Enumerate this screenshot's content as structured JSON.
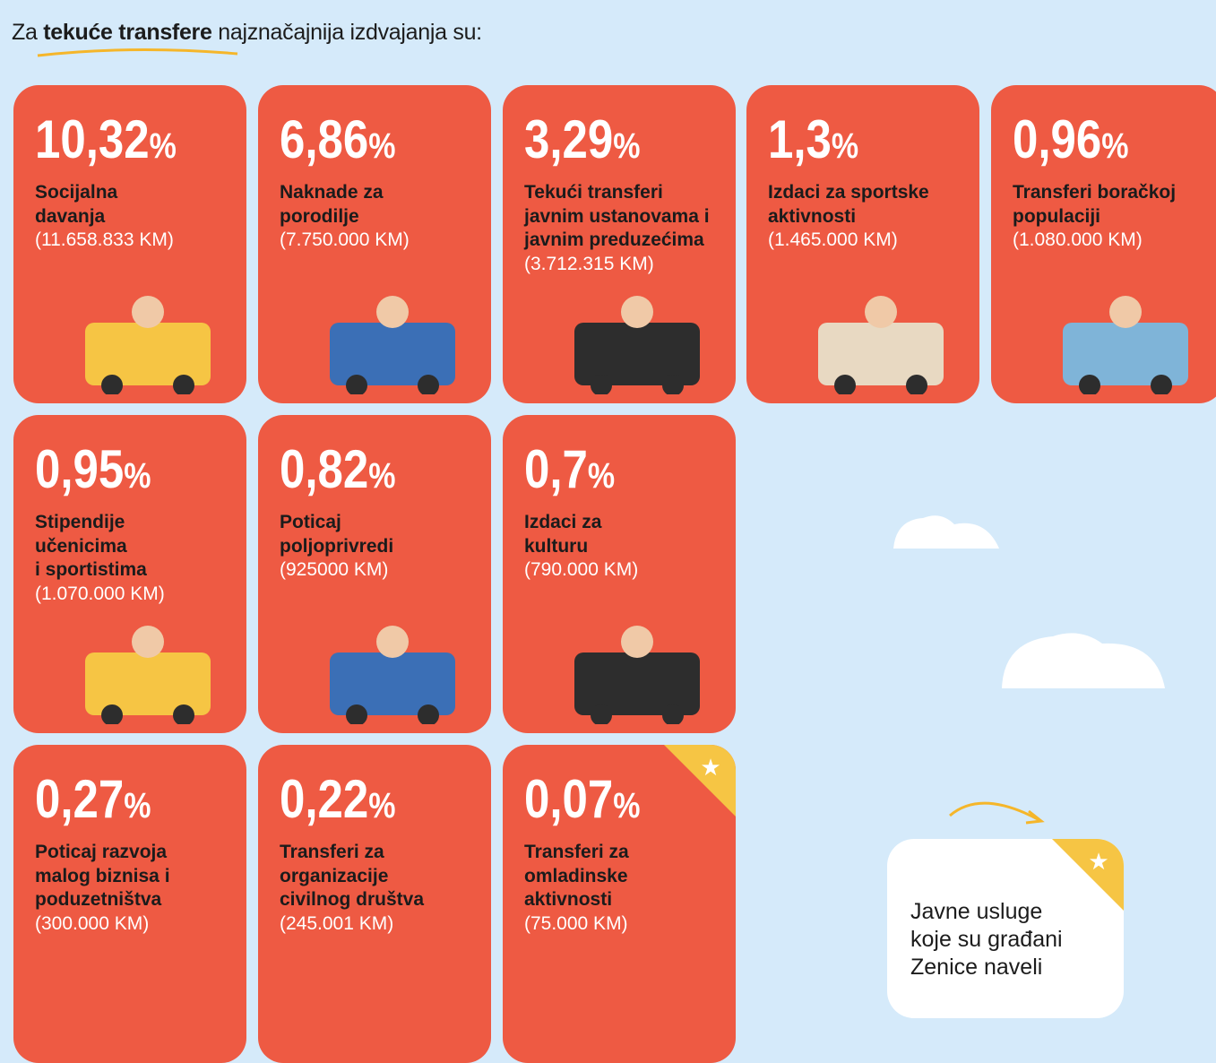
{
  "header": {
    "prefix": "Za",
    "bold": "tekuće transfere",
    "suffix": "najznačajnija izdvajanja su:"
  },
  "cards": [
    {
      "percent": "10,32",
      "unit": "%",
      "label": [
        "Socijalna",
        "davanja"
      ],
      "amount": "(11.658.833 KM)"
    },
    {
      "percent": "6,86",
      "unit": "%",
      "label": [
        "Naknade za",
        "porodilje"
      ],
      "amount": "(7.750.000 KM)"
    },
    {
      "percent": "3,29",
      "unit": "%",
      "label": [
        "Tekući transferi",
        "javnim ustanovama i",
        "javnim preduzećima"
      ],
      "amount": "(3.712.315 KM)"
    },
    {
      "percent": "1,3",
      "unit": "%",
      "label": [
        "Izdaci za sportske",
        "aktivnosti"
      ],
      "amount": "(1.465.000 KM)"
    },
    {
      "percent": "0,96",
      "unit": "%",
      "label": [
        "Transferi boračkoj",
        "populaciji"
      ],
      "amount": "(1.080.000 KM)"
    },
    {
      "percent": "0,95",
      "unit": "%",
      "label": [
        "Stipendije",
        "učenicima",
        "i sportistima"
      ],
      "amount": "(1.070.000 KM)"
    },
    {
      "percent": "0,82",
      "unit": "%",
      "label": [
        "Poticaj",
        "poljoprivredi"
      ],
      "amount": "(925000 KM)"
    },
    {
      "percent": "0,7",
      "unit": "%",
      "label": [
        "Izdaci za",
        "kulturu"
      ],
      "amount": "(790.000 KM)"
    },
    {
      "percent": "0,27",
      "unit": "%",
      "label": [
        "Poticaj razvoja",
        "malog biznisa i",
        "poduzetništva"
      ],
      "amount": "(300.000 KM)"
    },
    {
      "percent": "0,22",
      "unit": "%",
      "label": [
        "Transferi za",
        "organizacije",
        "civilnog društva"
      ],
      "amount": "(245.001 KM)"
    },
    {
      "percent": "0,07",
      "unit": "%",
      "label": [
        "Transferi za",
        "omladinske",
        "aktivnosti"
      ],
      "amount": "(75.000 KM)"
    }
  ],
  "callout": {
    "lines": [
      "Javne usluge",
      "koje su građani",
      "Zenice naveli"
    ]
  }
}
